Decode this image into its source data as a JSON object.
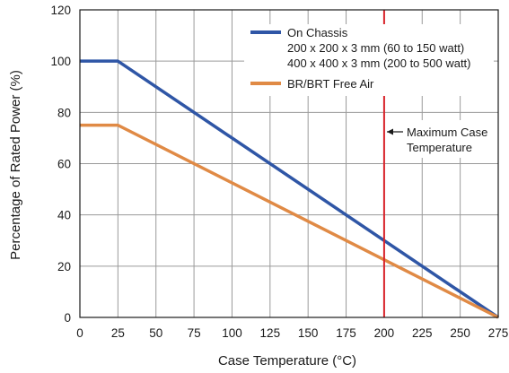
{
  "chart_data": {
    "type": "line",
    "xlabel": "Case Temperature (°C)",
    "ylabel": "Percentage of Rated Power (%)",
    "xlim": [
      0,
      275
    ],
    "ylim": [
      0,
      120
    ],
    "x_ticks": [
      0,
      25,
      50,
      75,
      100,
      125,
      150,
      175,
      200,
      225,
      250,
      275
    ],
    "y_ticks": [
      0,
      20,
      40,
      60,
      80,
      100,
      120
    ],
    "grid": true,
    "legend_placement": "top-right",
    "series": [
      {
        "name": "On Chassis",
        "extra_lines": [
          "200 x 200 x 3 mm (60 to 150 watt)",
          "400 x 400 x 3 mm (200 to 500 watt)"
        ],
        "color": "#2f56a6",
        "x": [
          0,
          25,
          275
        ],
        "y": [
          100,
          100,
          0
        ]
      },
      {
        "name": "BR/BRT Free Air",
        "color": "#e08a45",
        "x": [
          0,
          25,
          275
        ],
        "y": [
          75,
          75,
          0
        ]
      }
    ],
    "reference_line": {
      "x": 200,
      "color": "#d8232a",
      "label_lines": [
        "Maximum Case",
        "Temperature"
      ]
    }
  }
}
